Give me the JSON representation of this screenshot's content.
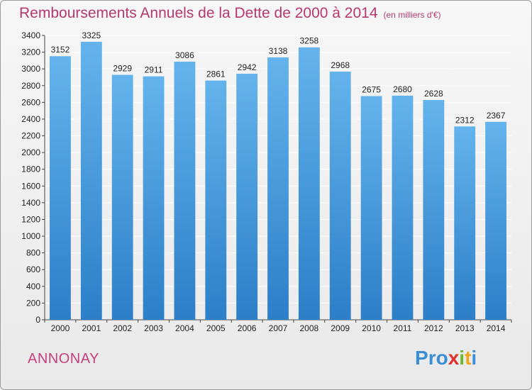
{
  "title": "Remboursements Annuels de la Dette de 2000 à 2014",
  "subtitle": "(en milliers d'€)",
  "city": "ANNONAY",
  "logo": {
    "text": "Proxiti",
    "letters": [
      "P",
      "r",
      "o",
      "x",
      "i",
      "t",
      "i"
    ],
    "colors": [
      "#3a8ed6",
      "#3a8ed6",
      "#3a8ed6",
      "#e0322a",
      "#6bb82f",
      "#f0a51e",
      "#3a8ed6"
    ]
  },
  "colors": {
    "bar_top": "#64b3ec",
    "bar_bottom": "#2c7fc8",
    "title": "#b8376e",
    "grid": "#ffffff"
  },
  "chart_data": {
    "type": "bar",
    "title": "Remboursements Annuels de la Dette de 2000 à 2014",
    "xlabel": "",
    "ylabel": "",
    "ylim": [
      0,
      3400
    ],
    "yticks": [
      0,
      200,
      400,
      600,
      800,
      1000,
      1200,
      1400,
      1600,
      1800,
      2000,
      2200,
      2400,
      2600,
      2800,
      3000,
      3200,
      3400
    ],
    "categories": [
      "2000",
      "2001",
      "2002",
      "2003",
      "2004",
      "2005",
      "2006",
      "2007",
      "2008",
      "2009",
      "2010",
      "2011",
      "2012",
      "2013",
      "2014"
    ],
    "values": [
      3152,
      3325,
      2929,
      2911,
      3086,
      2861,
      2942,
      3138,
      3258,
      2968,
      2675,
      2680,
      2628,
      2312,
      2367
    ],
    "grid": true
  }
}
